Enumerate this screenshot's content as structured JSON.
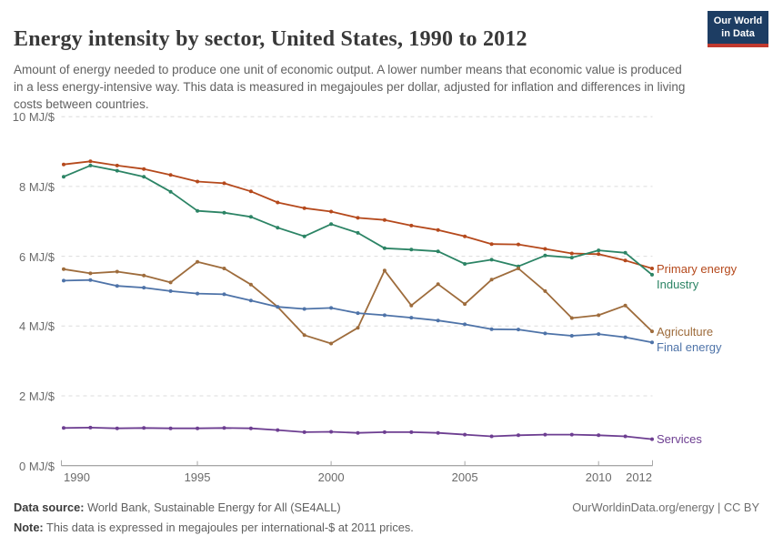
{
  "header": {
    "title": "Energy intensity by sector, United States, 1990 to 2012",
    "subtitle": "Amount of energy needed to produce one unit of economic output. A lower number means that economic value is produced in a less energy-intensive way. This data is measured in megajoules per dollar, adjusted for inflation and differences in living costs between countries.",
    "logo": {
      "line1": "Our World",
      "line2": "in Data"
    }
  },
  "chart_data": {
    "type": "line",
    "title": "Energy intensity by sector, United States, 1990 to 2012",
    "unit": "MJ/$",
    "xlim": [
      1990,
      2012
    ],
    "ylim": [
      0,
      10
    ],
    "grid": true,
    "legend_position": "right-end-of-lines",
    "x": [
      1990,
      1991,
      1992,
      1993,
      1994,
      1995,
      1996,
      1997,
      1998,
      1999,
      2000,
      2001,
      2002,
      2003,
      2004,
      2005,
      2006,
      2007,
      2008,
      2009,
      2010,
      2011,
      2012
    ],
    "x_ticks": [
      {
        "year": 1990,
        "label": "1990",
        "align": "left"
      },
      {
        "year": 1995,
        "label": "1995",
        "align": "center"
      },
      {
        "year": 2000,
        "label": "2000",
        "align": "center"
      },
      {
        "year": 2005,
        "label": "2005",
        "align": "center"
      },
      {
        "year": 2010,
        "label": "2010",
        "align": "center"
      },
      {
        "year": 2012,
        "label": "2012",
        "align": "right"
      }
    ],
    "y_ticks": [
      {
        "value": 0,
        "label": "0 MJ/$"
      },
      {
        "value": 2,
        "label": "2 MJ/$"
      },
      {
        "value": 4,
        "label": "4 MJ/$"
      },
      {
        "value": 6,
        "label": "6 MJ/$"
      },
      {
        "value": 8,
        "label": "8 MJ/$"
      },
      {
        "value": 10,
        "label": "10 MJ/$"
      }
    ],
    "series": [
      {
        "name": "Primary energy",
        "color": "#b5491c",
        "values": [
          8.63,
          8.72,
          8.6,
          8.5,
          8.33,
          8.14,
          8.09,
          7.86,
          7.54,
          7.38,
          7.28,
          7.1,
          7.04,
          6.88,
          6.75,
          6.57,
          6.35,
          6.34,
          6.21,
          6.08,
          6.06,
          5.88,
          5.65
        ]
      },
      {
        "name": "Industry",
        "color": "#2c8465",
        "values": [
          8.28,
          8.6,
          8.45,
          8.28,
          7.85,
          7.3,
          7.25,
          7.13,
          6.82,
          6.57,
          6.92,
          6.67,
          6.23,
          6.19,
          6.14,
          5.78,
          5.9,
          5.71,
          6.02,
          5.96,
          6.17,
          6.1,
          5.47
        ]
      },
      {
        "name": "Agriculture",
        "color": "#9e6c3c",
        "values": [
          5.63,
          5.51,
          5.56,
          5.45,
          5.25,
          5.84,
          5.65,
          5.19,
          4.55,
          3.74,
          3.5,
          3.95,
          5.59,
          4.59,
          5.2,
          4.63,
          5.33,
          5.65,
          5.0,
          4.23,
          4.31,
          4.59,
          3.85
        ]
      },
      {
        "name": "Final energy",
        "color": "#4e73a8",
        "values": [
          5.3,
          5.32,
          5.15,
          5.1,
          5.0,
          4.93,
          4.91,
          4.73,
          4.55,
          4.49,
          4.52,
          4.37,
          4.31,
          4.24,
          4.16,
          4.05,
          3.91,
          3.9,
          3.79,
          3.72,
          3.77,
          3.68,
          3.53
        ]
      },
      {
        "name": "Services",
        "color": "#6d3e91",
        "values": [
          1.08,
          1.09,
          1.07,
          1.08,
          1.07,
          1.07,
          1.08,
          1.07,
          1.02,
          0.96,
          0.97,
          0.94,
          0.96,
          0.96,
          0.94,
          0.89,
          0.84,
          0.87,
          0.89,
          0.89,
          0.87,
          0.84,
          0.76
        ]
      }
    ]
  },
  "footer": {
    "data_source_label": "Data source:",
    "data_source": " World Bank, Sustainable Energy for All (SE4ALL)",
    "note_label": "Note:",
    "note": " This data is expressed in megajoules per international-$ at 2011 prices.",
    "attribution": "OurWorldinData.org/energy | CC BY"
  }
}
